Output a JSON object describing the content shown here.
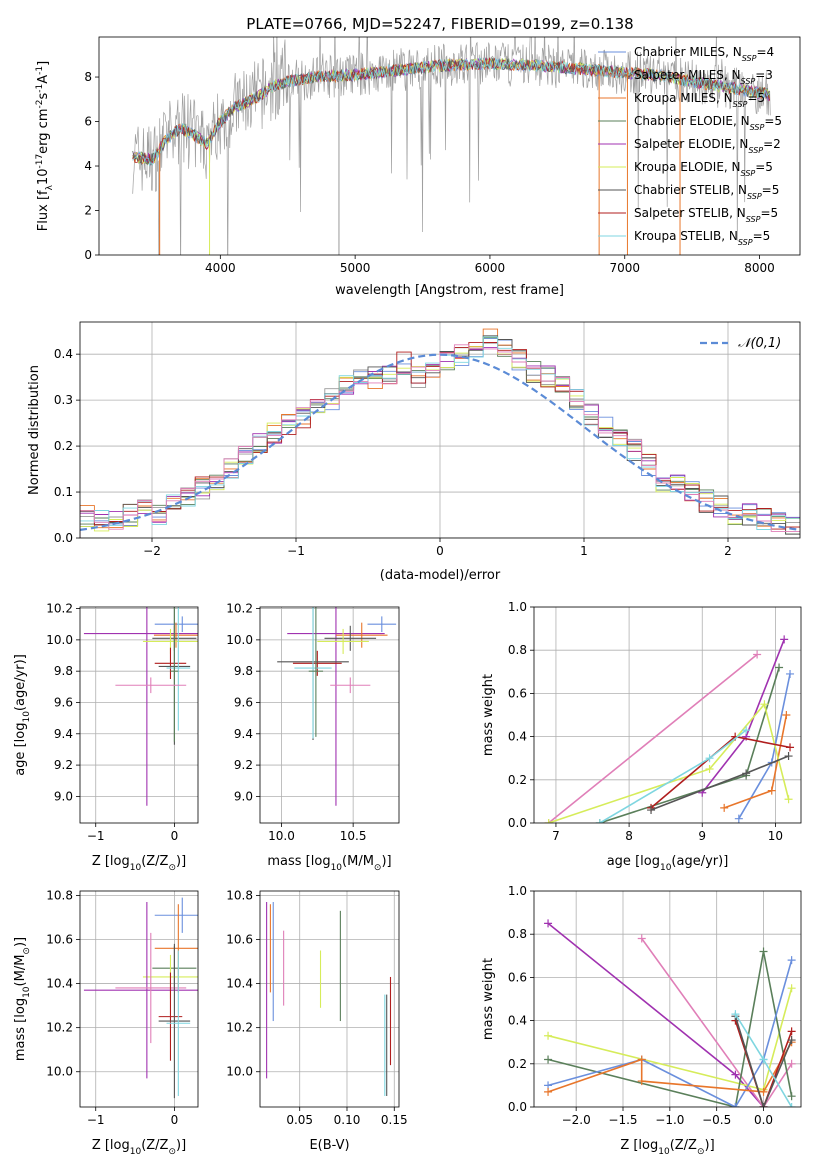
{
  "figure_title": "PLATE=0766, MJD=52247, FIBERID=0199, z=0.138",
  "colors": {
    "Chabrier MILES": "#6a8fdd",
    "Salpeter MILES": "#9a9a9a",
    "Kroupa MILES": "#e8762b",
    "Chabrier ELODIE": "#5a7f5a",
    "Salpeter ELODIE": "#a032b0",
    "Kroupa ELODIE": "#d6ec5a",
    "Chabrier STELIB": "#555555",
    "Salpeter STELIB": "#b01e1e",
    "Kroupa STELIB": "#7fd6e0",
    "pink": "#e07fb8"
  },
  "chart_data": [
    {
      "id": "spectrum",
      "type": "line",
      "xlabel": "wavelength [Angstrom, rest frame]",
      "ylabel_main": "Flux [f",
      "ylabel_sub": "λ",
      "ylabel_rest": "10",
      "ylabel_exp": "-17",
      "ylabel_units": "erg cm",
      "ylabel_units_exp1": "-2",
      "ylabel_units_s": "s",
      "ylabel_units_exp2": "-1",
      "ylabel_units_a": "A",
      "ylabel_units_exp3": "-1",
      "ylabel_close": "]",
      "xlim": [
        3100,
        8300
      ],
      "ylim": [
        0,
        9.8
      ],
      "xticks": [
        4000,
        5000,
        6000,
        7000,
        8000
      ],
      "yticks": [
        0,
        2,
        4,
        6,
        8
      ],
      "legend_position": "right",
      "legend": [
        {
          "label": "Chabrier MILES, N",
          "sub": "SSP",
          "tail": "=4",
          "color": "#6a8fdd"
        },
        {
          "label": "Salpeter MILES, N",
          "sub": "SSP",
          "tail": "=3",
          "color": "#9a9a9a"
        },
        {
          "label": "Kroupa MILES, N",
          "sub": "SSP",
          "tail": "=5",
          "color": "#e8762b"
        },
        {
          "label": "Chabrier ELODIE, N",
          "sub": "SSP",
          "tail": "=5",
          "color": "#5a7f5a"
        },
        {
          "label": "Salpeter ELODIE, N",
          "sub": "SSP",
          "tail": "=2",
          "color": "#a032b0"
        },
        {
          "label": "Kroupa ELODIE, N",
          "sub": "SSP",
          "tail": "=5",
          "color": "#d6ec5a"
        },
        {
          "label": "Chabrier STELIB, N",
          "sub": "SSP",
          "tail": "=5",
          "color": "#555555"
        },
        {
          "label": "Salpeter STELIB, N",
          "sub": "SSP",
          "tail": "=5",
          "color": "#b01e1e"
        },
        {
          "label": "Kroupa STELIB, N",
          "sub": "SSP",
          "tail": "=5",
          "color": "#7fd6e0"
        }
      ],
      "continuum": {
        "x": [
          3350,
          3500,
          3600,
          3700,
          3800,
          3900,
          4000,
          4100,
          4200,
          4300,
          4400,
          4500,
          4700,
          5000,
          5300,
          5600,
          6000,
          6400,
          6800,
          7200,
          7600,
          8000,
          8080
        ],
        "y": [
          4.4,
          4.3,
          5.2,
          5.7,
          5.4,
          5.0,
          6.0,
          6.6,
          6.9,
          7.2,
          7.6,
          7.8,
          8.0,
          8.1,
          8.3,
          8.5,
          8.6,
          8.5,
          8.3,
          8.1,
          7.7,
          7.3,
          7.2
        ]
      },
      "drops": [
        {
          "x": 3550,
          "y": 0
        },
        {
          "x": 3920,
          "y": 0
        },
        {
          "x": 4880,
          "y": 0
        },
        {
          "x": 6810,
          "y": 0
        },
        {
          "x": 7020,
          "y": 0
        },
        {
          "x": 7410,
          "y": 0
        }
      ]
    },
    {
      "id": "residuals",
      "type": "histogram",
      "xlabel": "(data-model)/error",
      "ylabel": "Normed distribution",
      "xlim": [
        -2.5,
        2.5
      ],
      "ylim": [
        0,
        0.47
      ],
      "xticks": [
        -2,
        -1,
        0,
        1,
        2
      ],
      "yticks": [
        0.0,
        0.1,
        0.2,
        0.3,
        0.4
      ],
      "legend_label": "𝒩(0,1)",
      "legend_position": "top-right",
      "bin_width": 0.1,
      "bin_start": -2.5,
      "values": [
        0.05,
        0.04,
        0.04,
        0.05,
        0.06,
        0.05,
        0.07,
        0.09,
        0.11,
        0.12,
        0.15,
        0.18,
        0.21,
        0.23,
        0.25,
        0.26,
        0.28,
        0.3,
        0.33,
        0.35,
        0.35,
        0.36,
        0.38,
        0.35,
        0.36,
        0.39,
        0.4,
        0.41,
        0.43,
        0.42,
        0.39,
        0.36,
        0.35,
        0.33,
        0.3,
        0.27,
        0.24,
        0.21,
        0.19,
        0.16,
        0.12,
        0.12,
        0.1,
        0.08,
        0.07,
        0.05,
        0.05,
        0.04,
        0.03,
        0.03
      ]
    },
    {
      "id": "age-vs-z",
      "type": "errorbar",
      "xlabel": "Z [log",
      "xlabel_sub": "10",
      "xlabel_rest": "(Z/Z",
      "xlabel_sun": "⊙",
      "xlabel_close": ")]",
      "ylabel": "age  [log",
      "ylabel_sub": "10",
      "ylabel_rest": "(age/yr)]",
      "xlim": [
        -1.2,
        0.3
      ],
      "ylim": [
        8.83,
        10.21
      ],
      "xticks": [
        -1,
        0
      ],
      "yticks": [
        9.0,
        9.2,
        9.4,
        9.6,
        9.8,
        10.0,
        10.2
      ],
      "points": [
        {
          "x": 0.1,
          "y": 10.1,
          "xerr": 0.35,
          "yerr": 0.05,
          "color": "#6a8fdd"
        },
        {
          "x": -0.35,
          "y": 10.04,
          "xerr": 0.8,
          "yerr": 1.1,
          "color": "#a032b0"
        },
        {
          "x": 0.02,
          "y": 10.03,
          "xerr": 0.28,
          "yerr": 0.08,
          "color": "#e8762b"
        },
        {
          "x": 0.0,
          "y": 10.01,
          "xerr": 0.28,
          "yerr": 0.08,
          "color": "#555555"
        },
        {
          "x": -0.05,
          "y": 9.99,
          "xerr": 0.35,
          "yerr": 0.08,
          "color": "#d6ec5a"
        },
        {
          "x": -0.05,
          "y": 9.85,
          "xerr": 0.2,
          "yerr": 0.1,
          "color": "#b01e1e"
        },
        {
          "x": 0.0,
          "y": 9.83,
          "xerr": 0.2,
          "yerr": 0.5,
          "color": "#555555"
        },
        {
          "x": 0.05,
          "y": 9.82,
          "xerr": 0.15,
          "yerr": 0.4,
          "color": "#7fd6e0"
        },
        {
          "x": 0.0,
          "y": 9.8,
          "xerr": 0.05,
          "yerr": 0.45,
          "color": "#5a7f5a"
        },
        {
          "x": -0.3,
          "y": 9.71,
          "xerr": 0.45,
          "yerr": 0.05,
          "color": "#e07fb8"
        }
      ]
    },
    {
      "id": "age-vs-mass",
      "type": "errorbar",
      "xlabel": "mass [log",
      "xlabel_sub": "10",
      "xlabel_rest": "(M/M",
      "xlabel_sun": "⊙",
      "xlabel_close": ")]",
      "xlim": [
        9.85,
        10.82
      ],
      "ylim": [
        8.83,
        10.21
      ],
      "xticks": [
        10.0,
        10.5
      ],
      "yticks": [
        9.0,
        9.2,
        9.4,
        9.6,
        9.8,
        10.0,
        10.2
      ],
      "points": [
        {
          "x": 10.7,
          "y": 10.1,
          "xerr": 0.1,
          "yerr": 0.05,
          "color": "#6a8fdd"
        },
        {
          "x": 10.38,
          "y": 10.04,
          "xerr": 0.34,
          "yerr": 1.1,
          "color": "#a032b0"
        },
        {
          "x": 10.56,
          "y": 10.03,
          "xerr": 0.18,
          "yerr": 0.08,
          "color": "#e8762b"
        },
        {
          "x": 10.48,
          "y": 10.01,
          "xerr": 0.18,
          "yerr": 0.08,
          "color": "#555555"
        },
        {
          "x": 10.43,
          "y": 9.99,
          "xerr": 0.18,
          "yerr": 0.08,
          "color": "#d6ec5a"
        },
        {
          "x": 10.25,
          "y": 9.85,
          "xerr": 0.17,
          "yerr": 0.08,
          "color": "#b01e1e"
        },
        {
          "x": 10.22,
          "y": 9.86,
          "xerr": 0.25,
          "yerr": 0.5,
          "color": "#555555"
        },
        {
          "x": 10.22,
          "y": 9.82,
          "xerr": 0.13,
          "yerr": 0.45,
          "color": "#7fd6e0"
        },
        {
          "x": 10.24,
          "y": 9.8,
          "xerr": 0.05,
          "yerr": 0.42,
          "color": "#5a7f5a"
        },
        {
          "x": 10.48,
          "y": 9.71,
          "xerr": 0.14,
          "yerr": 0.05,
          "color": "#e07fb8"
        }
      ]
    },
    {
      "id": "weight-vs-age",
      "type": "line",
      "xlabel": "age  [log",
      "xlabel_sub": "10",
      "xlabel_rest": "(age/yr)]",
      "ylabel": "mass weight",
      "xlim": [
        6.7,
        10.35
      ],
      "ylim": [
        0,
        1.0
      ],
      "xticks": [
        7,
        8,
        9,
        10
      ],
      "yticks": [
        0.0,
        0.2,
        0.4,
        0.6,
        0.8,
        1.0
      ],
      "series": [
        {
          "color": "#e07fb8",
          "x": [
            6.9,
            9.75
          ],
          "y": [
            0.0,
            0.78
          ]
        },
        {
          "color": "#a032b0",
          "x": [
            9.0,
            9.6,
            10.12
          ],
          "y": [
            0.14,
            0.4,
            0.85
          ]
        },
        {
          "color": "#5a7f5a",
          "x": [
            7.6,
            9.6,
            10.05
          ],
          "y": [
            0.0,
            0.22,
            0.72
          ]
        },
        {
          "color": "#6a8fdd",
          "x": [
            9.5,
            9.95,
            10.2
          ],
          "y": [
            0.02,
            0.28,
            0.69
          ]
        },
        {
          "color": "#e8762b",
          "x": [
            9.3,
            9.95,
            10.15
          ],
          "y": [
            0.07,
            0.15,
            0.5
          ]
        },
        {
          "color": "#d6ec5a",
          "x": [
            6.9,
            9.1,
            9.85,
            10.18
          ],
          "y": [
            0.0,
            0.25,
            0.55,
            0.11
          ]
        },
        {
          "color": "#b01e1e",
          "x": [
            8.3,
            9.45,
            10.2
          ],
          "y": [
            0.07,
            0.4,
            0.35
          ]
        },
        {
          "color": "#555555",
          "x": [
            8.3,
            9.6,
            10.18
          ],
          "y": [
            0.06,
            0.23,
            0.31
          ]
        },
        {
          "color": "#7fd6e0",
          "x": [
            7.6,
            9.1,
            9.6
          ],
          "y": [
            0.0,
            0.3,
            0.43
          ]
        }
      ]
    },
    {
      "id": "mass-vs-z",
      "type": "errorbar",
      "xlabel": "Z [log",
      "xlabel_sub": "10",
      "xlabel_rest": "(Z/Z",
      "xlabel_sun": "⊙",
      "xlabel_close": ")]",
      "ylabel": "mass [log",
      "ylabel_sub": "10",
      "ylabel_rest": "(M/M",
      "ylabel_sun": "⊙",
      "ylabel_close": ")]",
      "xlim": [
        -1.2,
        0.3
      ],
      "ylim": [
        9.84,
        10.82
      ],
      "xticks": [
        -1,
        0
      ],
      "yticks": [
        10.0,
        10.2,
        10.4,
        10.6,
        10.8
      ],
      "points": [
        {
          "x": 0.1,
          "y": 10.71,
          "xerr": 0.35,
          "yerr": 0.08,
          "color": "#6a8fdd"
        },
        {
          "x": 0.05,
          "y": 10.56,
          "xerr": 0.3,
          "yerr": 0.2,
          "color": "#e8762b"
        },
        {
          "x": 0.0,
          "y": 10.47,
          "xerr": 0.28,
          "yerr": 0.1,
          "color": "#5a7f5a"
        },
        {
          "x": -0.05,
          "y": 10.43,
          "xerr": 0.35,
          "yerr": 0.1,
          "color": "#d6ec5a"
        },
        {
          "x": -0.35,
          "y": 10.37,
          "xerr": 0.8,
          "yerr": 0.4,
          "color": "#a032b0"
        },
        {
          "x": -0.3,
          "y": 10.38,
          "xerr": 0.45,
          "yerr": 0.25,
          "color": "#e07fb8"
        },
        {
          "x": -0.05,
          "y": 10.25,
          "xerr": 0.15,
          "yerr": 0.2,
          "color": "#b01e1e"
        },
        {
          "x": 0.0,
          "y": 10.23,
          "xerr": 0.2,
          "yerr": 0.35,
          "color": "#555555"
        },
        {
          "x": 0.05,
          "y": 10.22,
          "xerr": 0.15,
          "yerr": 0.33,
          "color": "#7fd6e0"
        }
      ]
    },
    {
      "id": "mass-vs-ebv",
      "type": "errorbar",
      "xlabel": "E(B-V)",
      "xlim": [
        0.008,
        0.155
      ],
      "ylim": [
        9.84,
        10.82
      ],
      "xticks": [
        0.05,
        0.1,
        0.15
      ],
      "yticks": [
        10.0,
        10.2,
        10.4,
        10.6,
        10.8
      ],
      "points": [
        {
          "x": 0.015,
          "y": 10.37,
          "xerr": 0,
          "yerr": 0.4,
          "color": "#a032b0"
        },
        {
          "x": 0.019,
          "y": 10.56,
          "xerr": 0,
          "yerr": 0.2,
          "color": "#e8762b"
        },
        {
          "x": 0.022,
          "y": 10.5,
          "xerr": 0,
          "yerr": 0.27,
          "color": "#6a8fdd"
        },
        {
          "x": 0.033,
          "y": 10.47,
          "xerr": 0,
          "yerr": 0.17,
          "color": "#e07fb8"
        },
        {
          "x": 0.072,
          "y": 10.42,
          "xerr": 0,
          "yerr": 0.13,
          "color": "#d6ec5a"
        },
        {
          "x": 0.093,
          "y": 10.48,
          "xerr": 0,
          "yerr": 0.25,
          "color": "#5a7f5a"
        },
        {
          "x": 0.14,
          "y": 10.12,
          "xerr": 0,
          "yerr": 0.23,
          "color": "#7fd6e0"
        },
        {
          "x": 0.142,
          "y": 10.12,
          "xerr": 0,
          "yerr": 0.23,
          "color": "#555555"
        },
        {
          "x": 0.146,
          "y": 10.23,
          "xerr": 0,
          "yerr": 0.2,
          "color": "#b01e1e"
        }
      ]
    },
    {
      "id": "weight-vs-z",
      "type": "line",
      "xlabel": "Z [log",
      "xlabel_sub": "10",
      "xlabel_rest": "(Z/Z",
      "xlabel_sun": "⊙",
      "xlabel_close": ")]",
      "ylabel": "mass weight",
      "xlim": [
        -2.45,
        0.4
      ],
      "ylim": [
        0,
        1.0
      ],
      "xticks": [
        -2.0,
        -1.5,
        -1.0,
        -0.5,
        0.0
      ],
      "yticks": [
        0.0,
        0.2,
        0.4,
        0.6,
        0.8,
        1.0
      ],
      "series": [
        {
          "color": "#a032b0",
          "x": [
            -2.3,
            -0.3,
            0.0
          ],
          "y": [
            0.85,
            0.15,
            0.0
          ]
        },
        {
          "color": "#e07fb8",
          "x": [
            -1.3,
            0.0,
            0.3
          ],
          "y": [
            0.78,
            0.0,
            0.2
          ]
        },
        {
          "color": "#d6ec5a",
          "x": [
            -2.3,
            0.0,
            0.3
          ],
          "y": [
            0.33,
            0.08,
            0.55
          ]
        },
        {
          "color": "#5a7f5a",
          "x": [
            -2.3,
            -0.3,
            0.0,
            0.3
          ],
          "y": [
            0.22,
            0.0,
            0.72,
            0.05
          ]
        },
        {
          "color": "#6a8fdd",
          "x": [
            -2.3,
            -1.3,
            -0.3,
            0.0,
            0.3
          ],
          "y": [
            0.1,
            0.22,
            0.0,
            0.22,
            0.68
          ]
        },
        {
          "color": "#e8762b",
          "x": [
            -2.3,
            -1.3,
            -1.3,
            0.0,
            0.3
          ],
          "y": [
            0.07,
            0.22,
            0.12,
            0.07,
            0.3
          ]
        },
        {
          "color": "#b01e1e",
          "x": [
            -0.3,
            0.0,
            0.3
          ],
          "y": [
            0.4,
            0.0,
            0.35
          ]
        },
        {
          "color": "#555555",
          "x": [
            -0.3,
            0.0,
            0.3
          ],
          "y": [
            0.42,
            0.0,
            0.31
          ]
        },
        {
          "color": "#7fd6e0",
          "x": [
            -0.3,
            0.0,
            0.3
          ],
          "y": [
            0.43,
            0.22,
            0.0
          ]
        }
      ]
    }
  ]
}
